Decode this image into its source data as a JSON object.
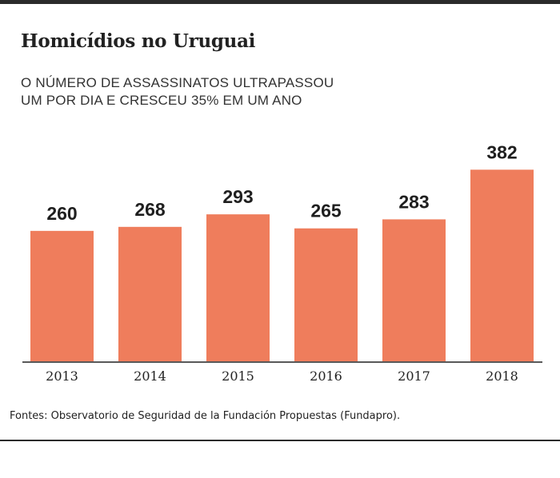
{
  "header": {
    "title": "Homicídios no Uruguai",
    "subtitle": "O NÚMERO DE ASSASSINATOS ULTRAPASSOU UM POR DIA E CRESCEU 35% EM UM ANO"
  },
  "footer": {
    "source": "Fontes: Observatorio de Seguridad de la Fundación Propuestas (Fundapro)."
  },
  "colors": {
    "bar": "#ef7d5c",
    "baseline": "#222222"
  },
  "chart_data": {
    "type": "bar",
    "title": "Homicídios no Uruguai",
    "subtitle": "O NÚMERO DE ASSASSINATOS ULTRAPASSOU UM POR DIA E CRESCEU 35% EM UM ANO",
    "categories": [
      "2013",
      "2014",
      "2015",
      "2016",
      "2017",
      "2018"
    ],
    "values": [
      260,
      268,
      293,
      265,
      283,
      382
    ],
    "xlabel": "",
    "ylabel": "",
    "ylim": [
      0,
      400
    ],
    "grid": false,
    "legend": "none"
  }
}
